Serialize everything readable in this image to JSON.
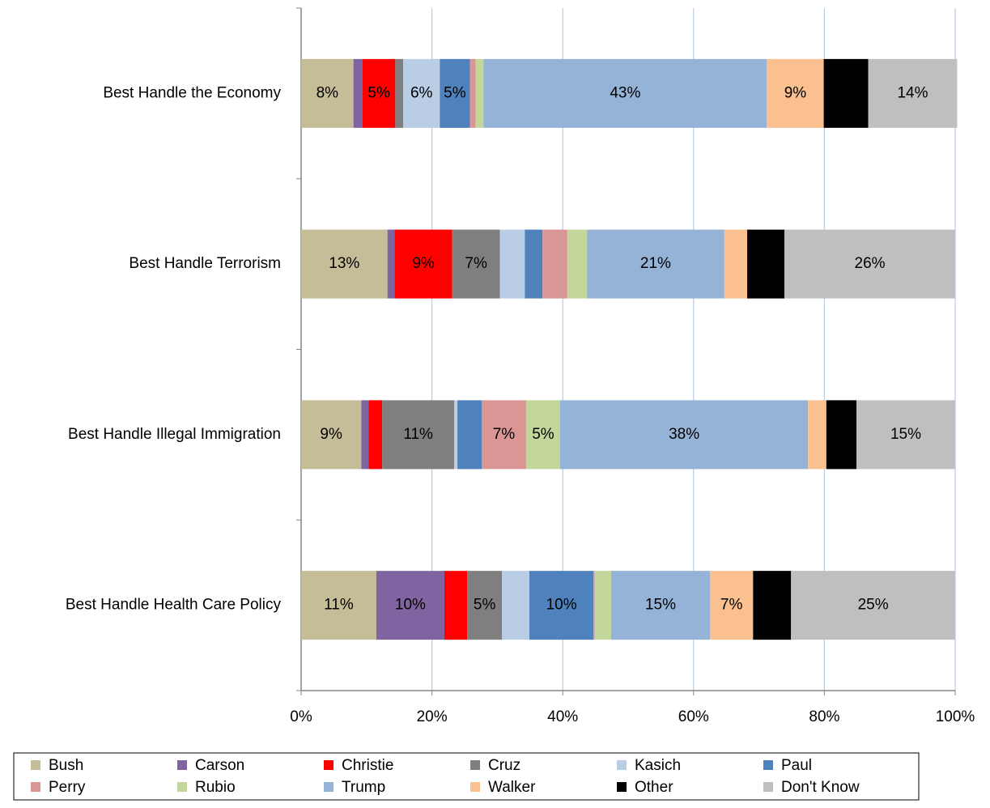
{
  "chart_data": {
    "type": "stacked_barh",
    "categories": [
      "Best Handle the Economy",
      "Best Handle Terrorism",
      "Best Handle Illegal Immigration",
      "Best Handle Health Care Policy"
    ],
    "series": [
      {
        "name": "Bush",
        "color": "#c4bd97",
        "values": [
          8.0,
          13.2,
          9.2,
          11.5
        ],
        "value_labels": [
          "8%",
          "13%",
          "9%",
          "11%"
        ]
      },
      {
        "name": "Carson",
        "color": "#8064a2",
        "values": [
          1.4,
          1.1,
          1.1,
          10.4
        ],
        "value_labels": [
          null,
          null,
          null,
          "10%"
        ]
      },
      {
        "name": "Christie",
        "color": "#ff0000",
        "values": [
          5.0,
          8.8,
          2.1,
          3.5
        ],
        "value_labels": [
          "5%",
          "9%",
          null,
          null
        ]
      },
      {
        "name": "Cruz",
        "color": "#7f7f7f",
        "values": [
          1.2,
          7.3,
          11.0,
          5.3
        ],
        "value_labels": [
          null,
          "7%",
          "11%",
          "5%"
        ]
      },
      {
        "name": "Kasich",
        "color": "#b9cde5",
        "values": [
          5.6,
          3.8,
          0.5,
          4.2
        ],
        "value_labels": [
          "6%",
          null,
          null,
          null
        ]
      },
      {
        "name": "Paul",
        "color": "#4f81bd",
        "values": [
          4.6,
          2.7,
          3.7,
          9.8
        ],
        "value_labels": [
          "5%",
          null,
          null,
          "10%"
        ]
      },
      {
        "name": "Perry",
        "color": "#d99694",
        "values": [
          0.9,
          3.8,
          6.8,
          0.2
        ],
        "value_labels": [
          null,
          null,
          "7%",
          null
        ]
      },
      {
        "name": "Rubio",
        "color": "#c3d69b",
        "values": [
          1.2,
          3.0,
          5.2,
          2.5
        ],
        "value_labels": [
          null,
          null,
          "5%",
          null
        ]
      },
      {
        "name": "Trump",
        "color": "#95b3d7",
        "values": [
          43.3,
          21.0,
          37.9,
          15.1
        ],
        "value_labels": [
          "43%",
          "21%",
          "38%",
          "15%"
        ]
      },
      {
        "name": "Walker",
        "color": "#fac090",
        "values": [
          8.7,
          3.5,
          2.8,
          6.6
        ],
        "value_labels": [
          "9%",
          null,
          null,
          "7%"
        ]
      },
      {
        "name": "Other",
        "color": "#000000",
        "values": [
          6.8,
          5.7,
          4.6,
          5.8
        ],
        "value_labels": [
          null,
          null,
          null,
          null
        ]
      },
      {
        "name": "Don't Know",
        "color": "#bfbfbf",
        "values": [
          13.6,
          26.1,
          15.1,
          25.1
        ],
        "value_labels": [
          "14%",
          "26%",
          "15%",
          "25%"
        ]
      }
    ],
    "xlim": [
      0,
      100
    ],
    "xticks": [
      {
        "value": 0,
        "label": "0%"
      },
      {
        "value": 20,
        "label": "20%"
      },
      {
        "value": 40,
        "label": "40%"
      },
      {
        "value": 60,
        "label": "60%"
      },
      {
        "value": 80,
        "label": "80%"
      },
      {
        "value": 100,
        "label": "100%"
      }
    ],
    "grid": true,
    "legend": "bottom"
  }
}
